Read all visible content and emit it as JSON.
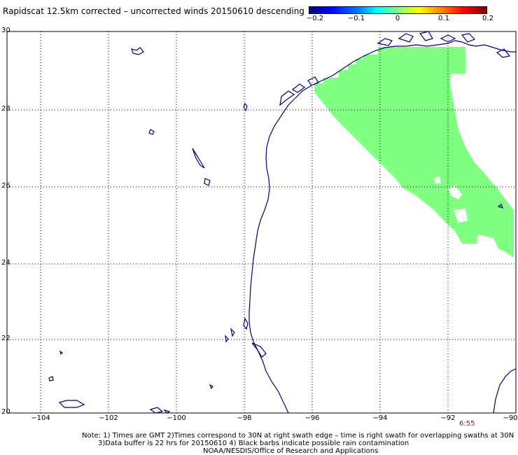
{
  "title": "Rapidscat 12.5km corrected – uncorrected winds 20150610 descending",
  "colorbar": {
    "ticks": [
      "−0.2",
      "−0.1",
      "0",
      "0.1",
      "0.2"
    ]
  },
  "axes": {
    "lat_labels": [
      "30",
      "28",
      "26",
      "24",
      "22",
      "20"
    ],
    "lon_labels": [
      "−104",
      "−102",
      "−100",
      "−98",
      "−96",
      "−94",
      "−92",
      "−90"
    ],
    "lon_range": [
      -105,
      -90
    ],
    "lat_range": [
      20,
      30
    ],
    "grid": "dotted"
  },
  "swath": {
    "value": 0,
    "color": "#80ff80"
  },
  "time_label": "6:55",
  "notes": {
    "line1": "Note: 1) Times are GMT 2)Times correspond to 30N at right swath edge – time is right swath for overlapping swaths at 30N",
    "line2": "3)Data buffer is 22 hrs for 20150610 4) Black barbs indicate possible rain contamination",
    "line3": "NOAA/NESDIS/Office of Research and Applications"
  },
  "colors": {
    "coastline": "#00007f",
    "grid": "#000000",
    "time_label": "#8b1a1a"
  }
}
